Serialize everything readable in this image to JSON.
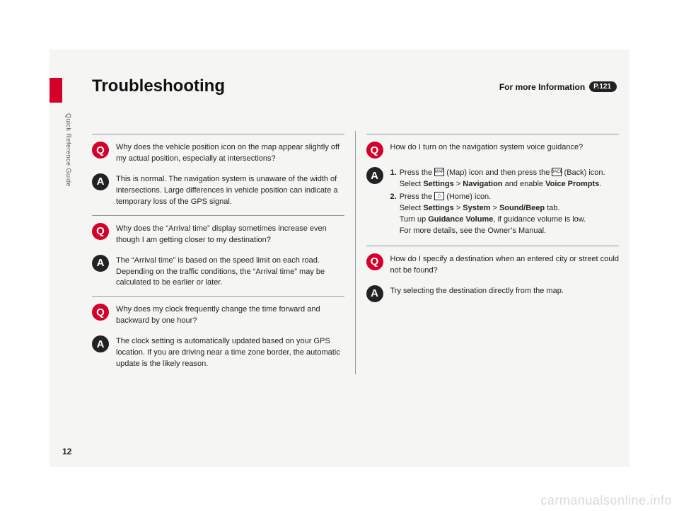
{
  "page_number": "12",
  "side_label": "Quick Reference Guide",
  "title": "Troubleshooting",
  "more_info": {
    "label": "For more Information",
    "badge": "P.121"
  },
  "watermark": "carmanualsonline.info",
  "left_col": [
    {
      "q": "Why does the vehicle position icon on the map appear slightly off my actual position, especially at intersections?",
      "a": "This is normal. The navigation system is unaware of the width of intersections. Large differences in vehicle position can indicate a temporary loss of the GPS signal."
    },
    {
      "q": "Why does the “Arrival time” display sometimes increase even though I am getting closer to my destination?",
      "a": "The “Arrival time” is based on the speed limit on each road. Depending on the traffic conditions, the “Arrival time” may be calculated to be earlier or later."
    },
    {
      "q": "Why does my clock frequently change the time forward and backward by one hour?",
      "a": "The clock setting is automatically updated based on your GPS location. If you are driving near a time zone border, the automatic update is the likely reason."
    }
  ],
  "right_col": [
    {
      "q": "How do I turn on the navigation system voice guidance?",
      "a_steps": [
        {
          "num": "1.",
          "pre": "Press the ",
          "icon1_label": "MAP",
          "mid1": " (Map) icon and then press the ",
          "icon2_label": "BACK",
          "mid2": " (Back) icon. Select ",
          "b1": "Settings",
          "gt1": " > ",
          "b2": "Navigation",
          "mid3": " and enable ",
          "b3": "Voice Prompts",
          "post": "."
        },
        {
          "num": "2.",
          "pre": "Press the ",
          "icon_home": true,
          "mid1": " (Home) icon.",
          "line2a": "Select ",
          "b1": "Settings",
          "gt1": " > ",
          "b2": "System",
          "gt2": " > ",
          "b3": "Sound/Beep",
          "line2b": " tab.",
          "line3a": "Turn up ",
          "b4": "Guidance Volume",
          "line3b": ", if guidance volume is low.",
          "line4": "For more details, see the Owner’s Manual."
        }
      ]
    },
    {
      "q": "How do I specify a destination when an entered city or street could not be found?",
      "a": "Try selecting the destination directly from the map."
    }
  ]
}
